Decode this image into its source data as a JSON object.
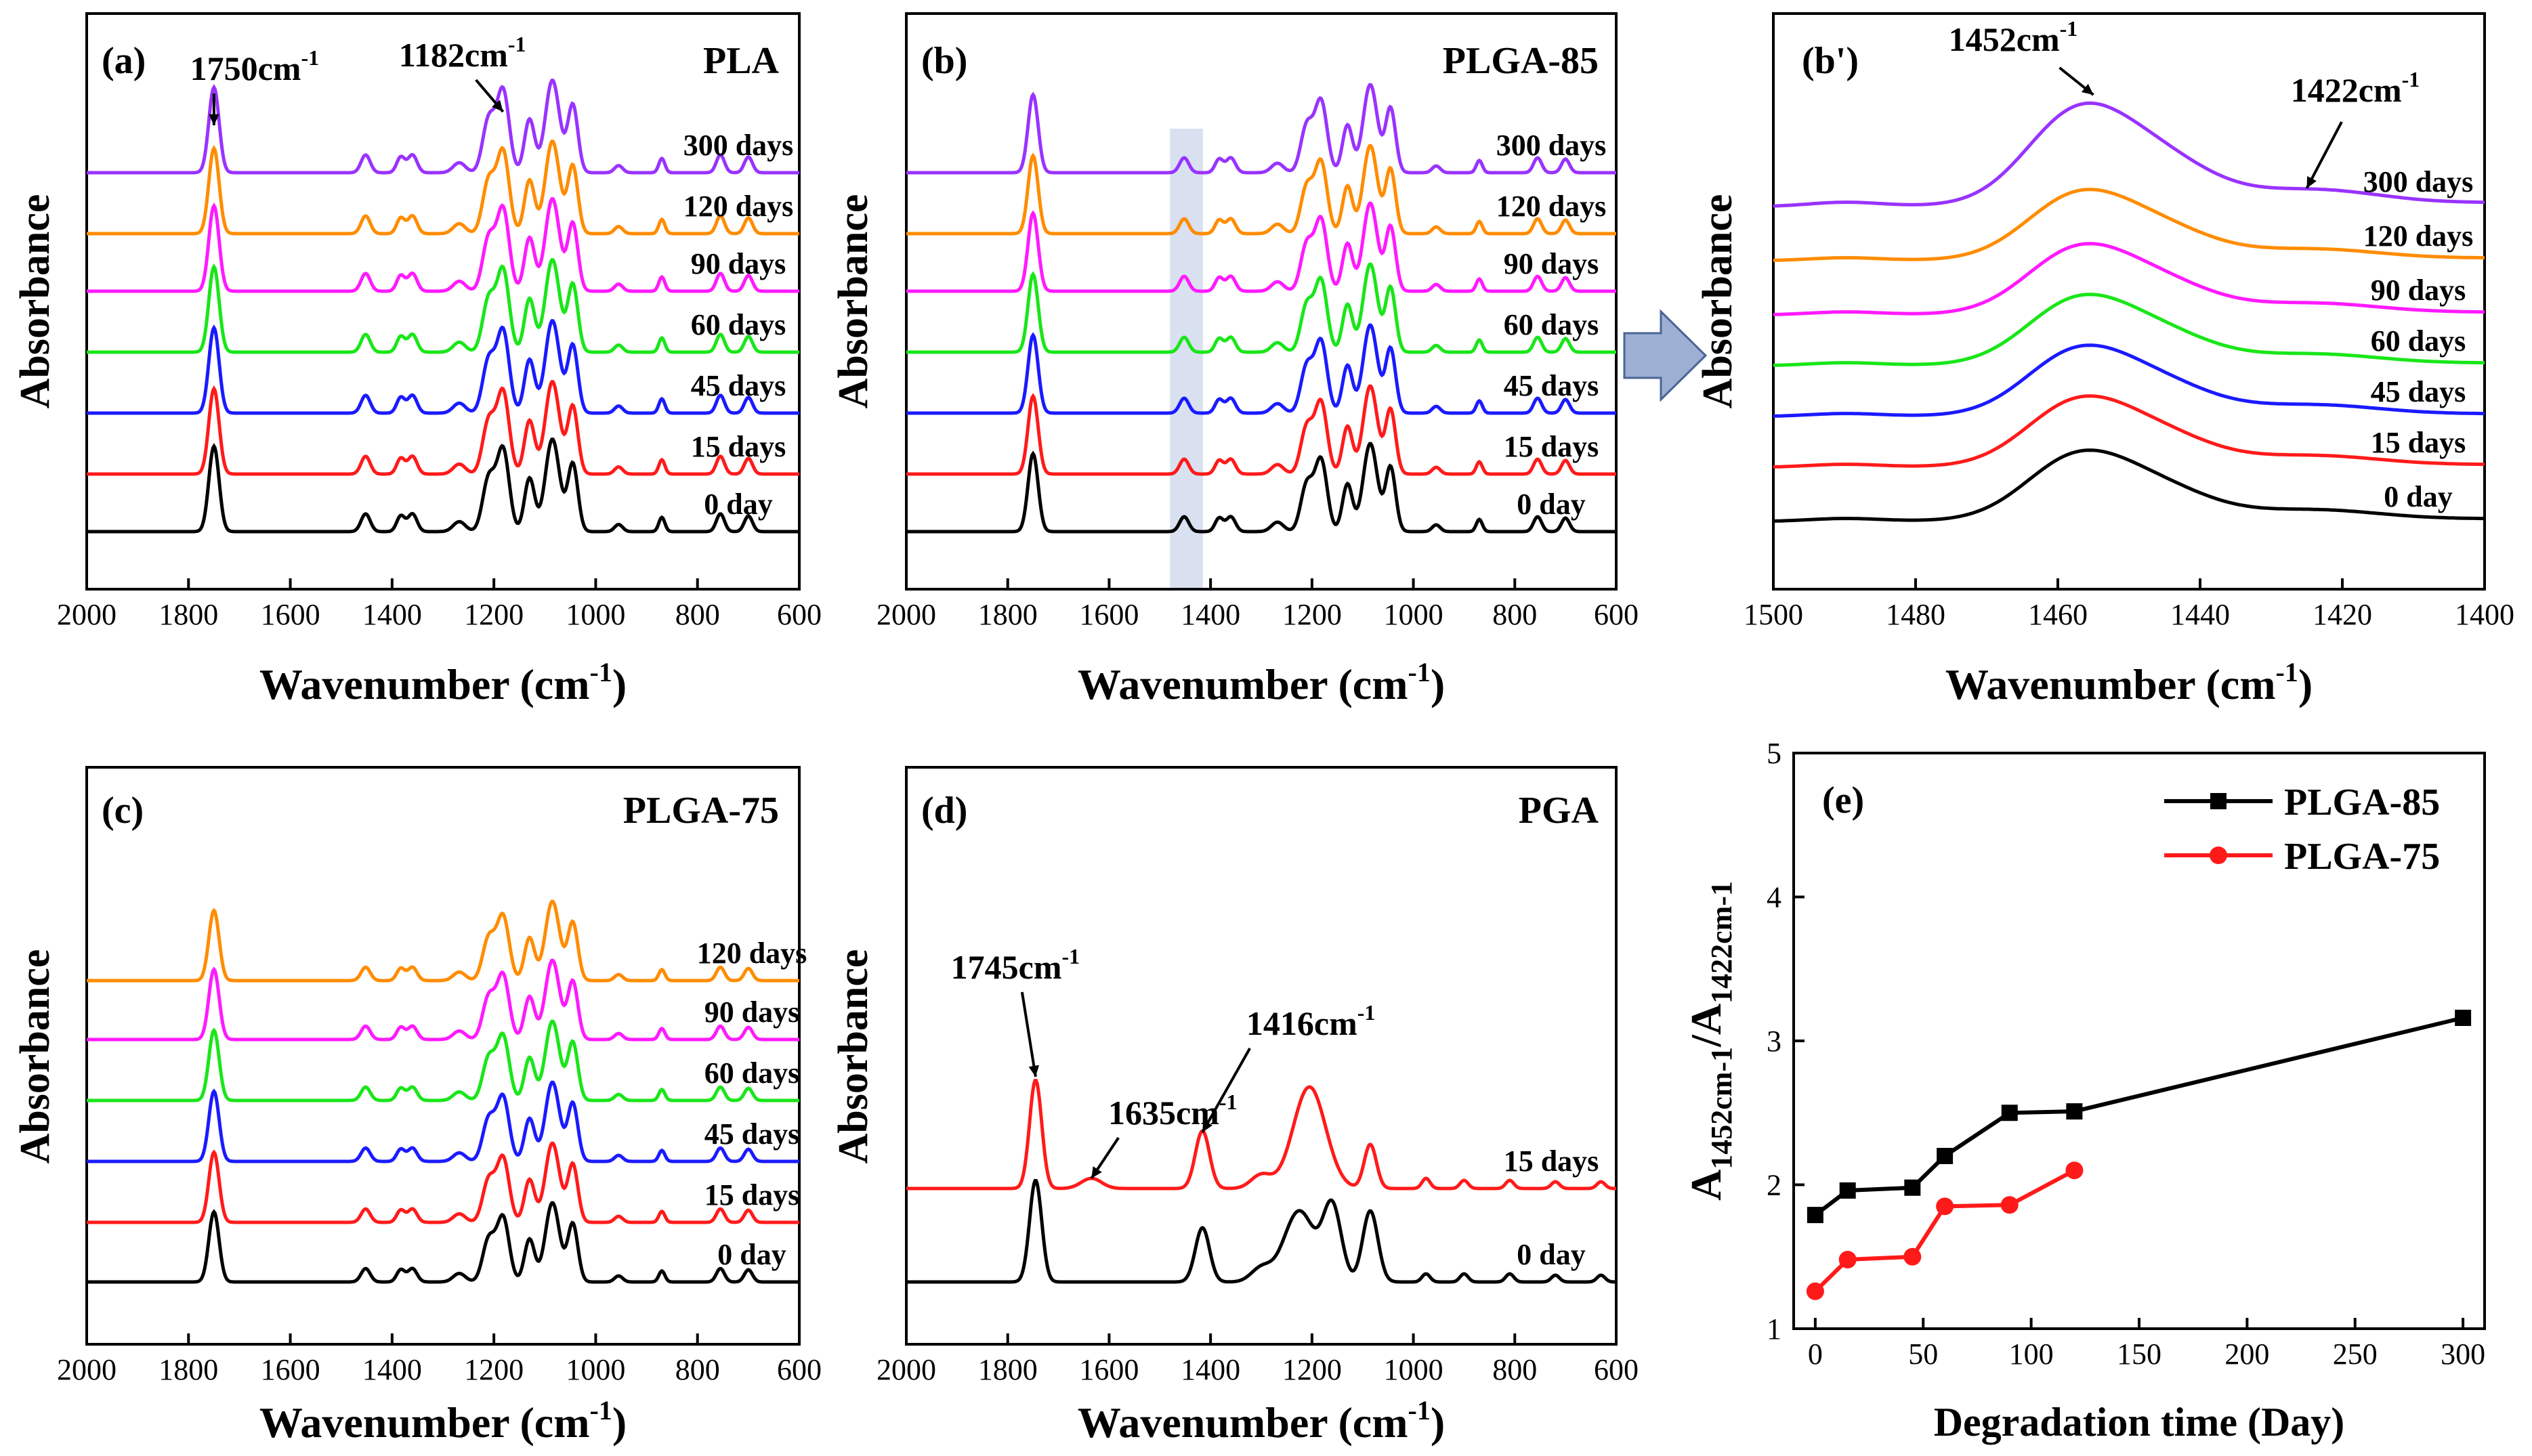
{
  "colors": {
    "0 day": "#000000",
    "15 days": "#ff1a1a",
    "45 days": "#1a1aff",
    "60 days": "#19e619",
    "90 days": "#ff1aff",
    "120 days": "#ff8c00",
    "300 days": "#9933ff",
    "arrow_fill": "#9db0d4",
    "highlight": "#cfd9ee"
  },
  "chart_data": [
    {
      "id": "a",
      "type": "line",
      "panel_label": "(a)",
      "title": "PLA",
      "xlabel": "Wavenumber (cm",
      "xlabel_sup": "-1",
      "xlabel_end": ")",
      "ylabel": "Absorbance",
      "xlim": [
        2000,
        600
      ],
      "xticks": [
        "2000",
        "1800",
        "1600",
        "1400",
        "1200",
        "1000",
        "800",
        "600"
      ],
      "series": [
        {
          "name": "0 day",
          "label": "0 day"
        },
        {
          "name": "15 days",
          "label": "15 days"
        },
        {
          "name": "45 days",
          "label": "45 days"
        },
        {
          "name": "60 days",
          "label": "60 days"
        },
        {
          "name": "90 days",
          "label": "90 days"
        },
        {
          "name": "120 days",
          "label": "120 days"
        },
        {
          "name": "300 days",
          "label": "300 days"
        }
      ],
      "annotations": [
        {
          "text": "1750cm",
          "sup": "-1",
          "at": 1750
        },
        {
          "text": "1182cm",
          "sup": "-1",
          "at": 1182
        }
      ]
    },
    {
      "id": "b",
      "type": "line",
      "panel_label": "(b)",
      "title": "PLGA-85",
      "xlabel": "Wavenumber (cm",
      "xlabel_sup": "-1",
      "xlabel_end": ")",
      "ylabel": "Absorbance",
      "xlim": [
        2000,
        600
      ],
      "xticks": [
        "2000",
        "1800",
        "1600",
        "1400",
        "1200",
        "1000",
        "800",
        "600"
      ],
      "highlight_range": [
        1480,
        1415
      ],
      "series": [
        {
          "name": "0 day",
          "label": "0 day"
        },
        {
          "name": "15 days",
          "label": "15 days"
        },
        {
          "name": "45 days",
          "label": "45 days"
        },
        {
          "name": "60 days",
          "label": "60 days"
        },
        {
          "name": "90 days",
          "label": "90 days"
        },
        {
          "name": "120 days",
          "label": "120 days"
        },
        {
          "name": "300 days",
          "label": "300 days"
        }
      ]
    },
    {
      "id": "b2",
      "type": "line",
      "panel_label": "(b')",
      "title": "",
      "xlabel": "Wavenumber (cm",
      "xlabel_sup": "-1",
      "xlabel_end": ")",
      "ylabel": "Absorbance",
      "xlim": [
        1500,
        1400
      ],
      "xticks": [
        "1500",
        "1480",
        "1460",
        "1440",
        "1420",
        "1400"
      ],
      "series": [
        {
          "name": "0 day",
          "label": "0 day"
        },
        {
          "name": "15 days",
          "label": "15 days"
        },
        {
          "name": "45 days",
          "label": "45 days"
        },
        {
          "name": "60 days",
          "label": "60 days"
        },
        {
          "name": "90 days",
          "label": "90 days"
        },
        {
          "name": "120 days",
          "label": "120 days"
        },
        {
          "name": "300 days",
          "label": "300 days"
        }
      ],
      "annotations": [
        {
          "text": "1452cm",
          "sup": "-1",
          "at": 1452
        },
        {
          "text": "1422cm",
          "sup": "-1",
          "at": 1422
        }
      ]
    },
    {
      "id": "c",
      "type": "line",
      "panel_label": "(c)",
      "title": "PLGA-75",
      "xlabel": "Wavenumber (cm",
      "xlabel_sup": "-1",
      "xlabel_end": ")",
      "ylabel": "Absorbance",
      "xlim": [
        2000,
        600
      ],
      "xticks": [
        "2000",
        "1800",
        "1600",
        "1400",
        "1200",
        "1000",
        "800",
        "600"
      ],
      "series": [
        {
          "name": "0 day",
          "label": "0 day"
        },
        {
          "name": "15 days",
          "label": "15 days"
        },
        {
          "name": "45 days",
          "label": "45 days"
        },
        {
          "name": "60 days",
          "label": "60 days"
        },
        {
          "name": "90 days",
          "label": "90 days"
        },
        {
          "name": "120 days",
          "label": "120 days"
        }
      ]
    },
    {
      "id": "d",
      "type": "line",
      "panel_label": "(d)",
      "title": "PGA",
      "xlabel": "Wavenumber (cm",
      "xlabel_sup": "-1",
      "xlabel_end": ")",
      "ylabel": "Absorbance",
      "xlim": [
        2000,
        600
      ],
      "xticks": [
        "2000",
        "1800",
        "1600",
        "1400",
        "1200",
        "1000",
        "800",
        "600"
      ],
      "series": [
        {
          "name": "0 day",
          "label": "0 day"
        },
        {
          "name": "15 days",
          "label": "15 days"
        }
      ],
      "annotations": [
        {
          "text": "1745cm",
          "sup": "-1",
          "at": 1745
        },
        {
          "text": "1635cm",
          "sup": "-1",
          "at": 1635
        },
        {
          "text": "1416cm",
          "sup": "-1",
          "at": 1416
        }
      ]
    },
    {
      "id": "e",
      "type": "line",
      "panel_label": "(e)",
      "title": "",
      "xlabel": "Degradation time (Day)",
      "ylabel_main": "A",
      "ylabel_sub1": "1452cm-1",
      "ylabel_sep": "/A",
      "ylabel_sub2": "1422cm-1",
      "xlim": [
        -10,
        310
      ],
      "ylim": [
        1,
        5
      ],
      "xticks": [
        "0",
        "50",
        "100",
        "150",
        "200",
        "250",
        "300"
      ],
      "yticks": [
        "1",
        "2",
        "3",
        "4",
        "5"
      ],
      "series": [
        {
          "name": "PLGA-85",
          "color": "#000000",
          "marker": "square",
          "x": [
            0,
            15,
            45,
            60,
            90,
            120,
            300
          ],
          "y": [
            1.79,
            1.96,
            1.98,
            2.2,
            2.5,
            2.51,
            3.16
          ]
        },
        {
          "name": "PLGA-75",
          "color": "#ff1a1a",
          "marker": "circle",
          "x": [
            0,
            15,
            45,
            60,
            90,
            120
          ],
          "y": [
            1.26,
            1.48,
            1.5,
            1.85,
            1.86,
            2.1
          ]
        }
      ]
    }
  ]
}
